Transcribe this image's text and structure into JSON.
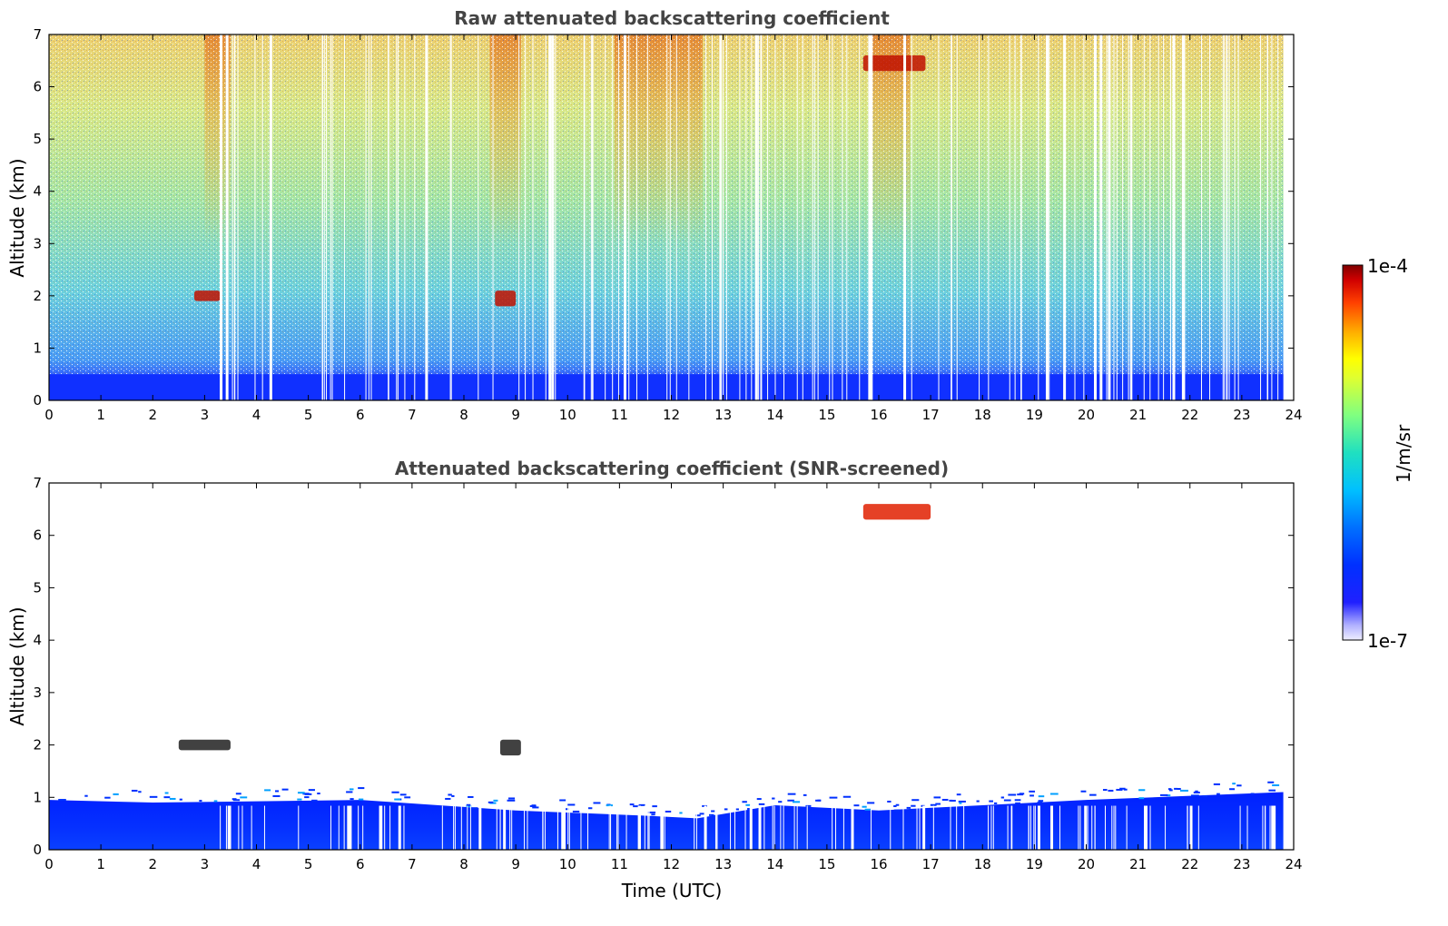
{
  "chart_data": [
    {
      "type": "heatmap",
      "title": "Raw attenuated backscattering coefficient",
      "xlabel": "",
      "ylabel": "Altitude (km)",
      "xlim": [
        0,
        24
      ],
      "ylim": [
        0,
        7
      ],
      "xticks": [
        "0",
        "1",
        "2",
        "3",
        "4",
        "5",
        "6",
        "7",
        "8",
        "9",
        "10",
        "11",
        "12",
        "13",
        "14",
        "15",
        "16",
        "17",
        "18",
        "19",
        "20",
        "21",
        "22",
        "23",
        "24"
      ],
      "yticks": [
        "0",
        "1",
        "2",
        "3",
        "4",
        "5",
        "6",
        "7"
      ],
      "data_extent_hours": [
        0,
        23.8
      ],
      "description_values": {
        "surface_layer_top_km": 0.5,
        "features": [
          {
            "time_utc": [
              2.8,
              3.3
            ],
            "altitude_km": [
              1.9,
              2.1
            ],
            "level": "high"
          },
          {
            "time_utc": [
              8.6,
              9.0
            ],
            "altitude_km": [
              1.8,
              2.1
            ],
            "level": "high"
          },
          {
            "time_utc": [
              15.7,
              16.9
            ],
            "altitude_km": [
              6.3,
              6.6
            ],
            "level": "high"
          }
        ]
      }
    },
    {
      "type": "heatmap",
      "title": "Attenuated backscattering coefficient (SNR-screened)",
      "xlabel": "Time (UTC)",
      "ylabel": "Altitude (km)",
      "xlim": [
        0,
        24
      ],
      "ylim": [
        0,
        7
      ],
      "xticks": [
        "0",
        "1",
        "2",
        "3",
        "4",
        "5",
        "6",
        "7",
        "8",
        "9",
        "10",
        "11",
        "12",
        "13",
        "14",
        "15",
        "16",
        "17",
        "18",
        "19",
        "20",
        "21",
        "22",
        "23",
        "24"
      ],
      "yticks": [
        "0",
        "1",
        "2",
        "3",
        "4",
        "5",
        "6",
        "7"
      ],
      "data_extent_hours": [
        0,
        23.8
      ],
      "description_values": {
        "boundary_layer_top_km": [
          [
            0,
            0.95
          ],
          [
            2,
            0.9
          ],
          [
            6,
            0.95
          ],
          [
            9,
            0.75
          ],
          [
            11.5,
            0.65
          ],
          [
            12.5,
            0.6
          ],
          [
            14,
            0.85
          ],
          [
            16,
            0.75
          ],
          [
            18,
            0.85
          ],
          [
            20,
            0.95
          ],
          [
            23.8,
            1.1
          ]
        ],
        "features": [
          {
            "time_utc": [
              2.5,
              3.5
            ],
            "altitude_km": [
              1.9,
              2.1
            ],
            "level": "mixed"
          },
          {
            "time_utc": [
              8.7,
              9.1
            ],
            "altitude_km": [
              1.8,
              2.1
            ],
            "level": "mixed"
          },
          {
            "time_utc": [
              15.7,
              17.0
            ],
            "altitude_km": [
              6.3,
              6.6
            ],
            "level": "high"
          }
        ]
      }
    }
  ],
  "colorbar": {
    "label": "1/m/sr",
    "max_label": "1e-4",
    "min_label": "1e-7",
    "colormap": [
      "#e8e8ff",
      "#b0b0ff",
      "#0000ff",
      "#0060ff",
      "#00c0ff",
      "#30e0c0",
      "#80ff80",
      "#c0ff40",
      "#ffff00",
      "#ffc000",
      "#ff6000",
      "#ff0000",
      "#b00000",
      "#800000"
    ]
  }
}
